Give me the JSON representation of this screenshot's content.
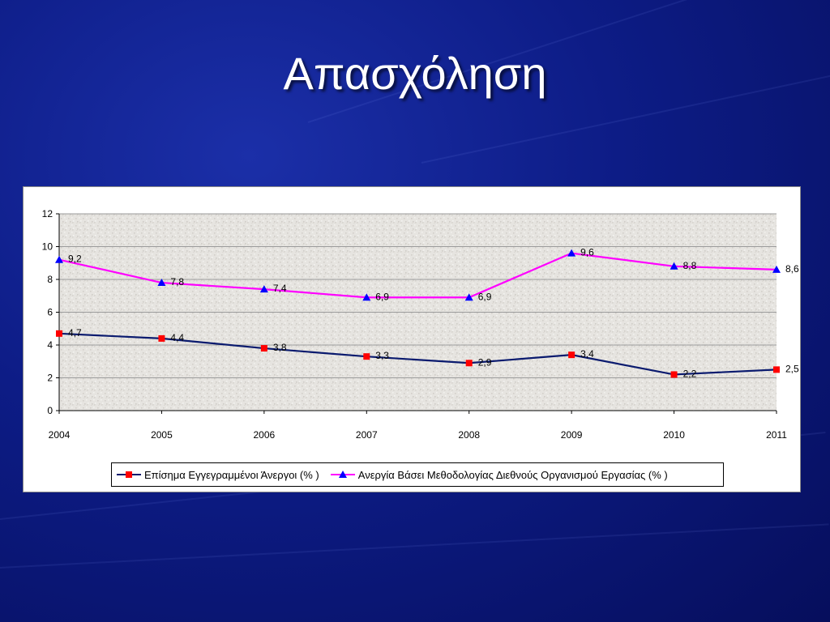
{
  "slide": {
    "title": "Απασχόληση"
  },
  "colors": {
    "series1": "#0a1a6e",
    "series2": "#ff00ff",
    "marker1": "#ff0000",
    "marker2": "#0000ff"
  },
  "chart_data": {
    "type": "line",
    "title": "",
    "xlabel": "",
    "ylabel": "",
    "x": [
      "2004",
      "2005",
      "2006",
      "2007",
      "2008",
      "2009",
      "2010",
      "2011"
    ],
    "ylim": [
      0,
      12
    ],
    "yticks": [
      0,
      2,
      4,
      6,
      8,
      10,
      12
    ],
    "grid": true,
    "legend": "bottom",
    "series": [
      {
        "name": "Επίσημα Εγγεγραμμένοι Άνεργοι (% )",
        "values": [
          4.7,
          4.4,
          3.8,
          3.3,
          2.9,
          3.4,
          2.2,
          2.5
        ],
        "labels": [
          "4,7",
          "4,4",
          "3,8",
          "3,3",
          "2,9",
          "3,4",
          "2,2",
          "2,5"
        ],
        "marker": "square"
      },
      {
        "name": "Ανεργία Βάσει Μεθοδολογίας Διεθνούς Οργανισμού Εργασίας (% )",
        "values": [
          9.2,
          7.8,
          7.4,
          6.9,
          6.9,
          9.6,
          8.8,
          8.6
        ],
        "labels": [
          "9,2",
          "7,8",
          "7,4",
          "6,9",
          "6,9",
          "9,6",
          "8,8",
          "8,6"
        ],
        "marker": "triangle"
      }
    ]
  }
}
